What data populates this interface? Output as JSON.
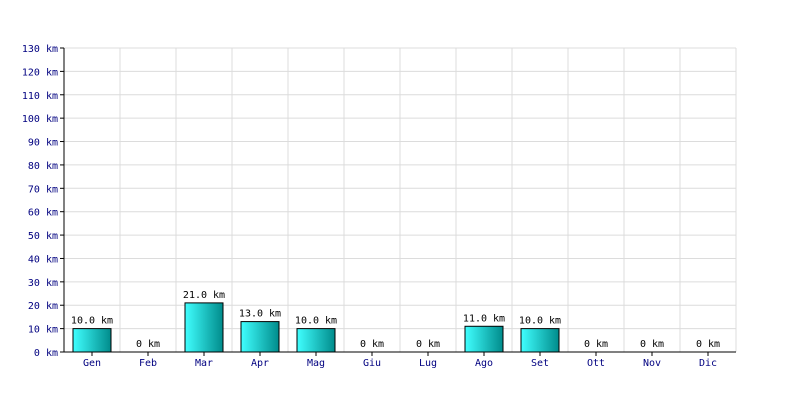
{
  "chart_data": {
    "type": "bar",
    "title": "",
    "xlabel": "",
    "ylabel": "",
    "unit": "km",
    "categories": [
      "Gen",
      "Feb",
      "Mar",
      "Apr",
      "Mag",
      "Giu",
      "Lug",
      "Ago",
      "Set",
      "Ott",
      "Nov",
      "Dic"
    ],
    "values": [
      10.0,
      0,
      21.0,
      13.0,
      10.0,
      0,
      0,
      11.0,
      10.0,
      0,
      0,
      0
    ],
    "data_labels": [
      "10.0 km",
      "0 km",
      "21.0 km",
      "13.0 km",
      "10.0 km",
      "0 km",
      "0 km",
      "11.0 km",
      "10.0 km",
      "0 km",
      "0 km",
      "0 km"
    ],
    "y_ticks": [
      0,
      10,
      20,
      30,
      40,
      50,
      60,
      70,
      80,
      90,
      100,
      110,
      120,
      130
    ],
    "y_tick_labels": [
      "0 km",
      "10 km",
      "20 km",
      "30 km",
      "40 km",
      "50 km",
      "60 km",
      "70 km",
      "80 km",
      "90 km",
      "100 km",
      "110 km",
      "120 km",
      "130 km"
    ],
    "ylim": [
      0,
      130
    ],
    "grid": true,
    "colors": {
      "bar_light": "#40ffff",
      "bar_dark": "#008b8b",
      "grid": "#dcdcdc",
      "tick_text": "#000080",
      "label_text": "#000000"
    }
  }
}
